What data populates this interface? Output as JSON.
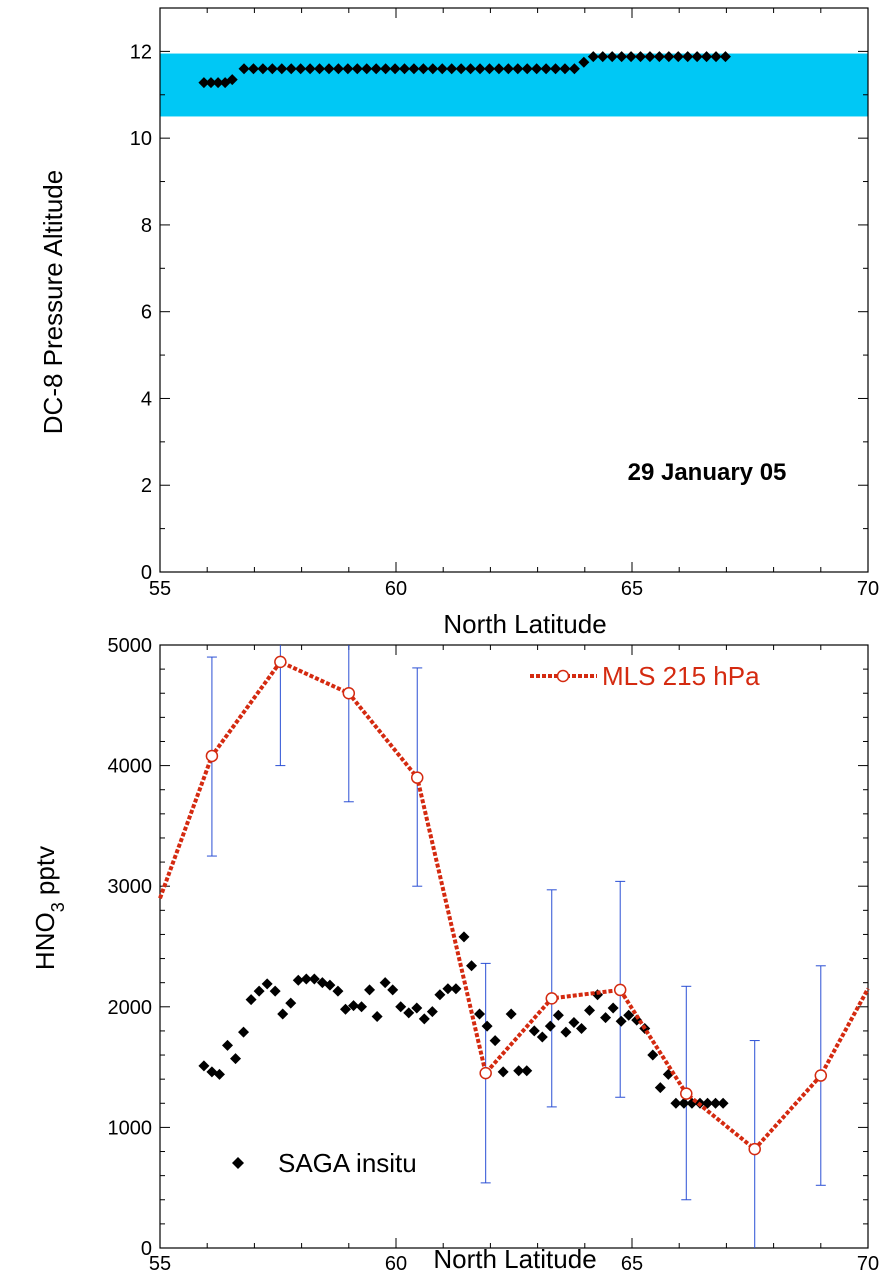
{
  "chart_data": [
    {
      "type": "scatter",
      "ylabel": "DC-8 Pressure Altitude",
      "xlabel": "North Latitude",
      "annotation": "29 January 05",
      "xlim": [
        55,
        70
      ],
      "ylim": [
        0,
        13
      ],
      "xticks": [
        "55",
        "60",
        "65",
        "70"
      ],
      "yticks": [
        "0",
        "2",
        "4",
        "6",
        "8",
        "10",
        "12"
      ],
      "shaded_band": {
        "y": [
          10.5,
          11.95
        ],
        "color": "#00c8f5"
      },
      "series": [
        {
          "marker": "diamond",
          "color": "#000000",
          "x": [
            55.93,
            56.08,
            56.23,
            56.38,
            56.53,
            56.78,
            56.98,
            57.18,
            57.38,
            57.58,
            57.78,
            57.98,
            58.18,
            58.38,
            58.58,
            58.78,
            58.98,
            59.18,
            59.38,
            59.58,
            59.78,
            59.98,
            60.18,
            60.38,
            60.58,
            60.78,
            60.98,
            61.18,
            61.38,
            61.58,
            61.78,
            61.98,
            62.18,
            62.38,
            62.58,
            62.78,
            62.98,
            63.18,
            63.38,
            63.58,
            63.78,
            63.98,
            64.18,
            64.38,
            64.58,
            64.78,
            64.98,
            65.18,
            65.38,
            65.58,
            65.78,
            65.98,
            66.18,
            66.38,
            66.58,
            66.78,
            66.98
          ],
          "y": [
            11.28,
            11.28,
            11.28,
            11.28,
            11.35,
            11.6,
            11.6,
            11.6,
            11.6,
            11.6,
            11.6,
            11.6,
            11.6,
            11.6,
            11.6,
            11.6,
            11.6,
            11.6,
            11.6,
            11.6,
            11.6,
            11.6,
            11.6,
            11.6,
            11.6,
            11.6,
            11.6,
            11.6,
            11.6,
            11.6,
            11.6,
            11.6,
            11.6,
            11.6,
            11.6,
            11.6,
            11.6,
            11.6,
            11.6,
            11.6,
            11.6,
            11.75,
            11.88,
            11.88,
            11.88,
            11.88,
            11.88,
            11.88,
            11.88,
            11.88,
            11.88,
            11.88,
            11.88,
            11.88,
            11.88,
            11.88,
            11.88
          ]
        }
      ]
    },
    {
      "type": "line",
      "ylabel_main": "HNO",
      "ylabel_sub": "3",
      "ylabel_suffix": " pptv",
      "xlabel": "North Latitude",
      "xlim": [
        55,
        70
      ],
      "ylim": [
        0,
        5000
      ],
      "xticks": [
        "55",
        "60",
        "65",
        "70"
      ],
      "yticks": [
        "0",
        "1000",
        "2000",
        "3000",
        "4000",
        "5000"
      ],
      "series": [
        {
          "name": "MLS 215 hPa",
          "color": "#d42a10",
          "errorbar_color": "#2a4fd4",
          "x": [
            55.0,
            56.1,
            57.55,
            59.0,
            60.45,
            61.9,
            63.3,
            64.75,
            66.15,
            67.6,
            69.0,
            70.0
          ],
          "y": [
            2900,
            4080,
            4860,
            4600,
            3900,
            1450,
            2070,
            2140,
            1280,
            820,
            1430,
            2150
          ],
          "err_low": [
            null,
            3250,
            4000,
            3700,
            3000,
            540,
            1170,
            1250,
            400,
            0,
            520,
            null
          ],
          "err_high": [
            null,
            4900,
            5000,
            5000,
            4810,
            2360,
            2970,
            3040,
            2170,
            1720,
            2340,
            null
          ]
        },
        {
          "name": "SAGA insitu",
          "color": "#000000",
          "marker": "diamond",
          "x": [
            55.93,
            56.1,
            56.26,
            56.43,
            56.6,
            56.77,
            56.93,
            57.1,
            57.27,
            57.44,
            57.6,
            57.77,
            57.93,
            58.1,
            58.27,
            58.44,
            58.6,
            58.77,
            58.93,
            59.1,
            59.27,
            59.44,
            59.6,
            59.77,
            59.93,
            60.1,
            60.27,
            60.44,
            60.6,
            60.77,
            60.93,
            61.1,
            61.27,
            61.44,
            61.6,
            61.77,
            61.93,
            62.1,
            62.27,
            62.44,
            62.6,
            62.77,
            62.93,
            63.1,
            63.27,
            63.44,
            63.6,
            63.77,
            63.93,
            64.1,
            64.27,
            64.44,
            64.6,
            64.77,
            64.93,
            65.1,
            65.27,
            65.44,
            65.6,
            65.77,
            65.93,
            66.1,
            66.27,
            66.44,
            66.6,
            66.77,
            66.93,
            67.1
          ],
          "y": [
            1510,
            1460,
            1440,
            1680,
            1570,
            1790,
            2060,
            2130,
            2190,
            2130,
            1940,
            2030,
            2220,
            2230,
            2230,
            2200,
            2180,
            2130,
            1980,
            2010,
            2000,
            2140,
            1920,
            2200,
            2140,
            2000,
            1950,
            1990,
            1900,
            1960,
            2100,
            2150,
            2150,
            2580,
            2340,
            1940,
            1840,
            1720,
            1460,
            1940,
            1470,
            1470,
            1800,
            1750,
            1840,
            1930,
            1790,
            1870,
            1820,
            1970,
            2100,
            1910,
            1990,
            1880,
            1930,
            1890,
            1820,
            1600,
            1330,
            1440,
            1200,
            1200,
            1200,
            1200,
            1200,
            1200,
            1200,
            1200
          ]
        }
      ]
    }
  ]
}
